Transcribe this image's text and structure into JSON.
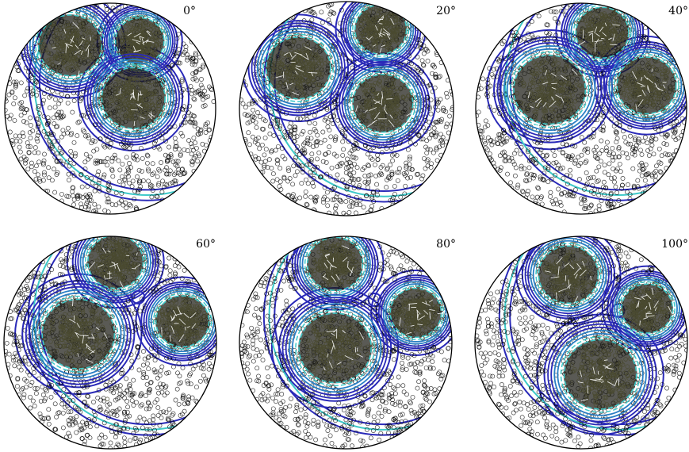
{
  "chart_data": [
    {
      "type": "scatter",
      "title": "0°",
      "clusters": [
        {
          "center": [
            -0.38,
            0.6
          ],
          "radius": 0.3,
          "contour_levels": 6
        },
        {
          "center": [
            0.28,
            0.64
          ],
          "radius": 0.23,
          "contour_levels": 6
        },
        {
          "center": [
            0.22,
            0.1
          ],
          "radius": 0.3,
          "contour_levels": 6
        }
      ],
      "points_per_cluster": 320,
      "background_points": 1100
    },
    {
      "type": "scatter",
      "title": "20°",
      "clusters": [
        {
          "center": [
            -0.45,
            0.38
          ],
          "radius": 0.3,
          "contour_levels": 6
        },
        {
          "center": [
            0.32,
            0.74
          ],
          "radius": 0.24,
          "contour_levels": 6
        },
        {
          "center": [
            0.34,
            0.05
          ],
          "radius": 0.28,
          "contour_levels": 6
        }
      ],
      "points_per_cluster": 320,
      "background_points": 1100
    },
    {
      "type": "scatter",
      "title": "40°",
      "clusters": [
        {
          "center": [
            0.2,
            0.72
          ],
          "radius": 0.25,
          "contour_levels": 6
        },
        {
          "center": [
            -0.3,
            0.18
          ],
          "radius": 0.34,
          "contour_levels": 6
        },
        {
          "center": [
            0.62,
            0.22
          ],
          "radius": 0.28,
          "contour_levels": 6
        }
      ],
      "points_per_cluster": 320,
      "background_points": 1100
    },
    {
      "type": "scatter",
      "title": "60°",
      "clusters": [
        {
          "center": [
            0.05,
            0.76
          ],
          "radius": 0.26,
          "contour_levels": 6
        },
        {
          "center": [
            -0.3,
            0.08
          ],
          "radius": 0.34,
          "contour_levels": 6
        },
        {
          "center": [
            0.68,
            0.2
          ],
          "radius": 0.25,
          "contour_levels": 6
        }
      ],
      "points_per_cluster": 320,
      "background_points": 1100
    },
    {
      "type": "scatter",
      "title": "80°",
      "clusters": [
        {
          "center": [
            -0.1,
            0.74
          ],
          "radius": 0.26,
          "contour_levels": 6
        },
        {
          "center": [
            0.66,
            0.28
          ],
          "radius": 0.24,
          "contour_levels": 6
        },
        {
          "center": [
            -0.1,
            -0.05
          ],
          "radius": 0.34,
          "contour_levels": 6
        }
      ],
      "points_per_cluster": 320,
      "background_points": 1100
    },
    {
      "type": "scatter",
      "title": "100°",
      "clusters": [
        {
          "center": [
            -0.12,
            0.64
          ],
          "radius": 0.28,
          "contour_levels": 6
        },
        {
          "center": [
            0.62,
            0.32
          ],
          "radius": 0.24,
          "contour_levels": 6
        },
        {
          "center": [
            0.18,
            -0.3
          ],
          "radius": 0.34,
          "contour_levels": 6
        }
      ],
      "points_per_cluster": 320,
      "background_points": 1100
    }
  ],
  "colors": {
    "outer_contour": "#2a2ab8",
    "mid_contour": "#2a7fc4",
    "inner_contour": "#3ec9c9",
    "scatter_edge": "#000000",
    "cluster_fill": "#1a1a14",
    "streak": "#ffffff"
  }
}
